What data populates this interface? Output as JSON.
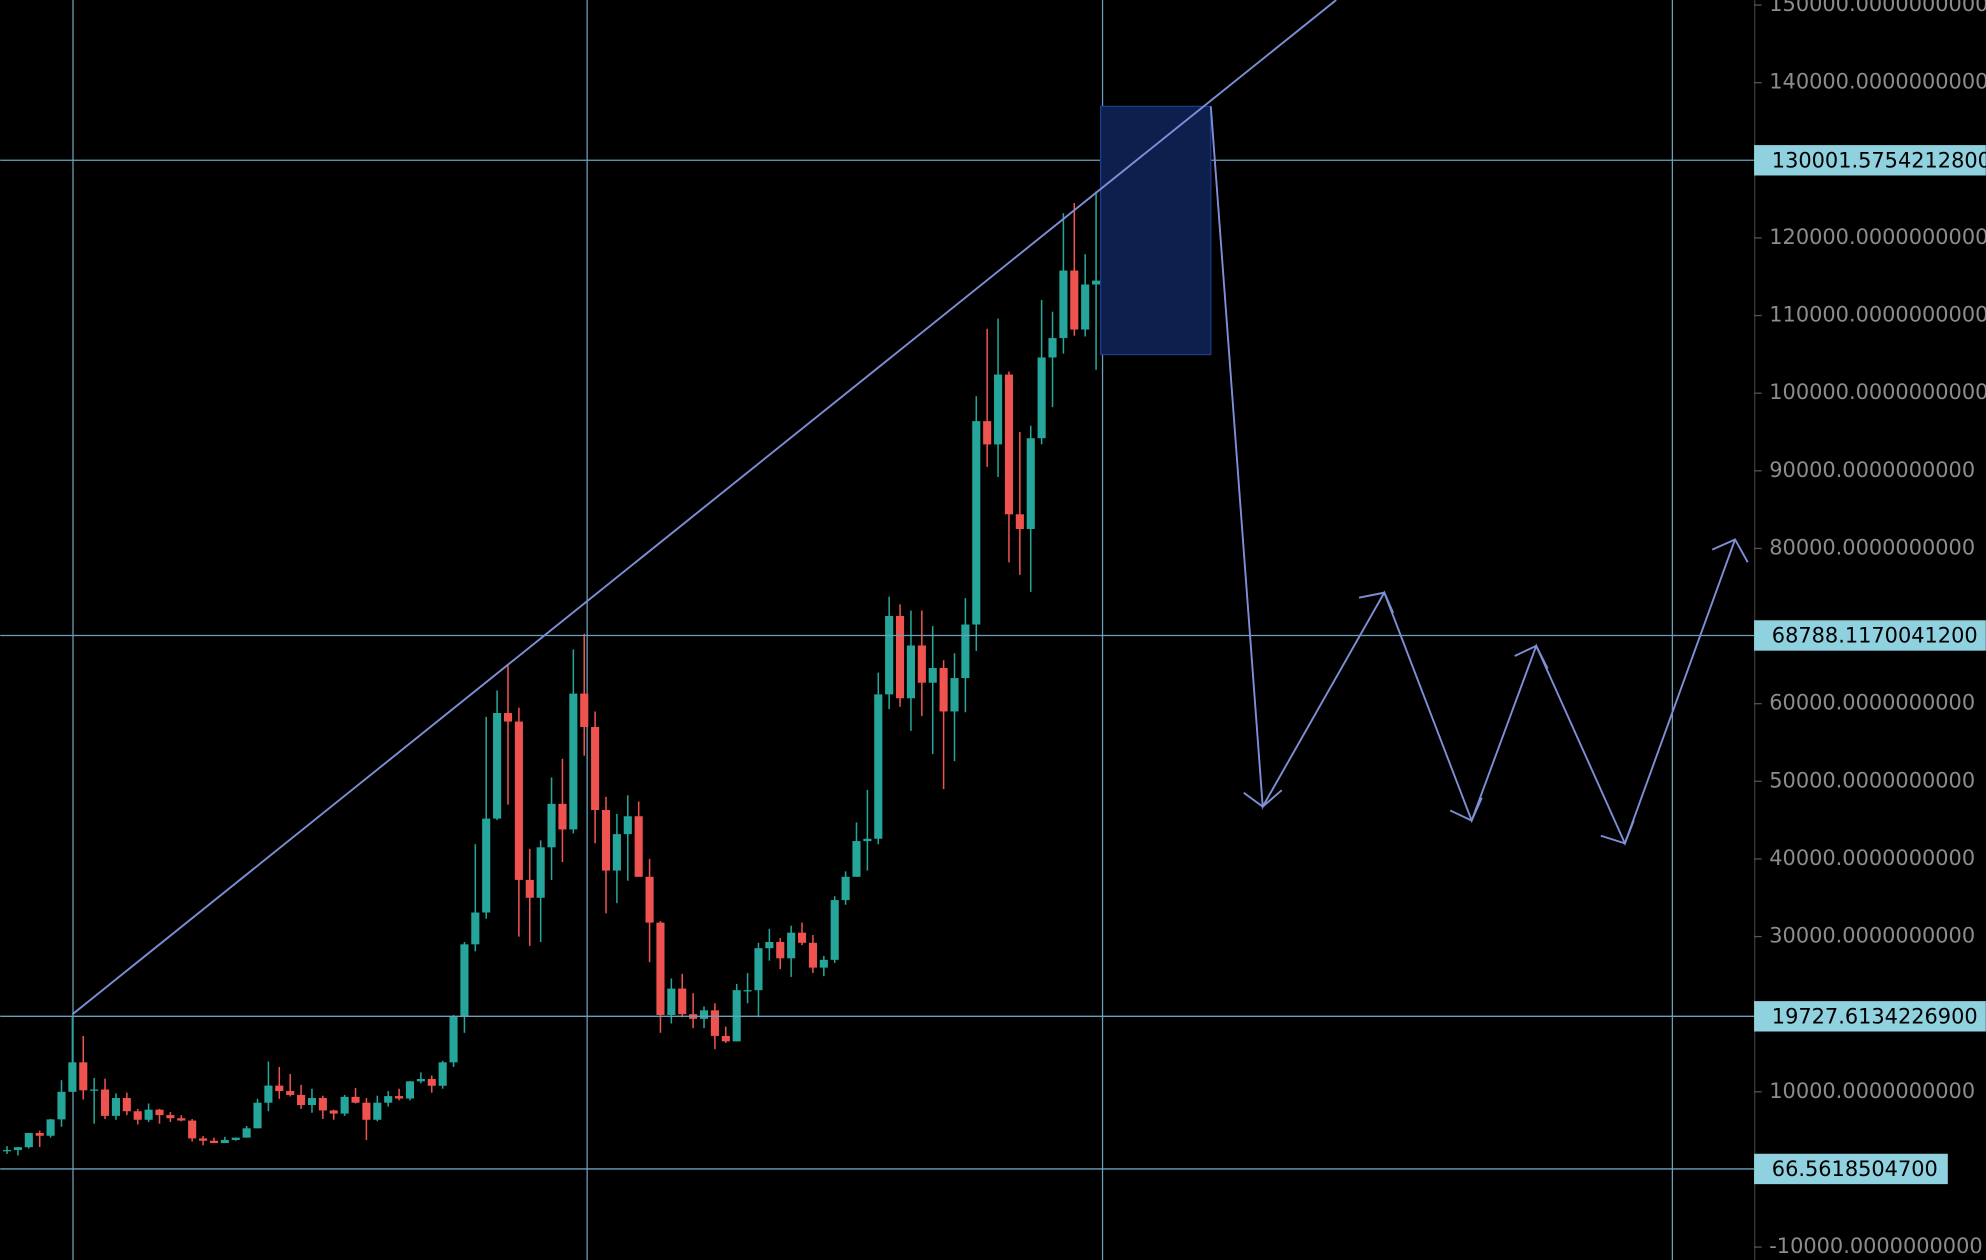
{
  "chart_data": {
    "type": "candlestick",
    "ylim": [
      -11664,
      150650
    ],
    "yticks": [
      {
        "value": 150000,
        "label": "150000.0000000000"
      },
      {
        "value": 140000,
        "label": "140000.0000000000"
      },
      {
        "value": 120000,
        "label": "120000.0000000000"
      },
      {
        "value": 110000,
        "label": "110000.0000000000"
      },
      {
        "value": 100000,
        "label": "100000.0000000000"
      },
      {
        "value": 90000,
        "label": "90000.0000000000"
      },
      {
        "value": 80000,
        "label": "80000.0000000000"
      },
      {
        "value": 60000,
        "label": "60000.0000000000"
      },
      {
        "value": 50000,
        "label": "50000.0000000000"
      },
      {
        "value": 40000,
        "label": "40000.0000000000"
      },
      {
        "value": 30000,
        "label": "30000.0000000000"
      },
      {
        "value": 10000,
        "label": "10000.0000000000"
      },
      {
        "value": -10000,
        "label": "-10000.0000000000"
      }
    ],
    "price_lines": [
      {
        "value": 130001.57542128,
        "label": "130001.5754212800"
      },
      {
        "value": 68788.11700412,
        "label": "68788.1170041200"
      },
      {
        "value": 19727.61342269,
        "label": "19727.6134226900"
      },
      {
        "value": 66.56185047,
        "label": "66.5618504700"
      }
    ],
    "up_color": "#26a69a",
    "down_color": "#ef5350",
    "open": [
      2400,
      2500,
      2870,
      4700,
      4340,
      6450,
      10000,
      13800,
      10200,
      10300,
      6900,
      9200,
      7500,
      6400,
      7700,
      7000,
      6600,
      6300,
      4000,
      3700,
      3400,
      3800,
      4100,
      5300,
      8600,
      10800,
      10100,
      9600,
      8300,
      9200,
      7600,
      7200,
      9350,
      8600,
      6400,
      8600,
      9450,
      9140,
      11350,
      11650,
      10780,
      13800,
      19700,
      29000,
      33100,
      45200,
      58800,
      57700,
      37300,
      35000,
      41500,
      47100,
      43800,
      61300,
      57000,
      46300,
      38500,
      43200,
      45500,
      37700,
      31800,
      19900,
      23300,
      20000,
      19400,
      20500,
      17200,
      16500,
      23100,
      23100,
      28500,
      29300,
      27200,
      30500,
      29200,
      26000,
      27000,
      34700,
      37700,
      42300,
      42600,
      61200,
      71300,
      60700,
      67500,
      62700,
      64600,
      59000,
      63300,
      70200,
      96400,
      93400,
      102400,
      84400,
      82500,
      94200,
      104600,
      107100,
      115800,
      108200,
      114000
    ],
    "high": [
      3000,
      2900,
      4700,
      5000,
      6500,
      11500,
      19700,
      17200,
      11800,
      11700,
      9800,
      9900,
      7800,
      8500,
      7800,
      7400,
      7000,
      6500,
      4300,
      4100,
      4200,
      4100,
      5600,
      9100,
      13900,
      13200,
      12300,
      10900,
      10400,
      9500,
      7700,
      9600,
      10500,
      9200,
      9500,
      10100,
      10400,
      11400,
      12500,
      12100,
      14000,
      19900,
      29300,
      41900,
      58300,
      61700,
      64900,
      59500,
      41300,
      42400,
      50500,
      52900,
      67000,
      69000,
      59000,
      48000,
      45800,
      48200,
      47400,
      40000,
      32000,
      24600,
      25200,
      22700,
      21000,
      21400,
      18400,
      23900,
      25300,
      29200,
      31000,
      29800,
      31400,
      31800,
      30200,
      27500,
      35200,
      38400,
      44700,
      48900,
      64000,
      73800,
      72800,
      72000,
      72000,
      70000,
      65600,
      66500,
      73600,
      99600,
      108300,
      109600,
      102800,
      95000,
      95800,
      112000,
      110500,
      123200,
      124500,
      117900,
      126000
    ],
    "low": [
      2000,
      1800,
      2700,
      2900,
      4100,
      5500,
      10000,
      9000,
      5900,
      6500,
      6400,
      7000,
      5800,
      6100,
      5900,
      6100,
      6200,
      3600,
      3100,
      3400,
      3400,
      3700,
      4100,
      5300,
      7500,
      9100,
      9400,
      7800,
      7300,
      6500,
      6400,
      6900,
      8500,
      3800,
      6200,
      8100,
      8900,
      8900,
      11100,
      9900,
      10400,
      13200,
      17600,
      28100,
      32300,
      45000,
      47000,
      30000,
      28800,
      29300,
      37300,
      39600,
      43300,
      53300,
      42000,
      33000,
      34300,
      37200,
      37700,
      26700,
      17600,
      18800,
      19600,
      18200,
      18200,
      15500,
      16300,
      16500,
      21400,
      19600,
      26900,
      25800,
      24800,
      28900,
      25300,
      24900,
      26600,
      34100,
      37700,
      38500,
      41900,
      59300,
      59600,
      56500,
      58400,
      53500,
      49000,
      52600,
      58900,
      66800,
      90500,
      89200,
      78200,
      76600,
      74400,
      93400,
      98200,
      105100,
      107400,
      107300,
      103000
    ],
    "close": [
      2500,
      2870,
      4700,
      4340,
      6450,
      10000,
      13800,
      10200,
      10300,
      6900,
      9200,
      7500,
      6400,
      7700,
      7000,
      6600,
      6300,
      4000,
      3700,
      3400,
      3800,
      4100,
      5300,
      8600,
      10800,
      10100,
      9600,
      8300,
      9200,
      7600,
      7200,
      9350,
      8600,
      6400,
      8600,
      9450,
      9140,
      11350,
      11650,
      10780,
      13800,
      19700,
      29000,
      33100,
      45200,
      58800,
      57700,
      37300,
      35000,
      41500,
      47100,
      43800,
      61300,
      57000,
      46300,
      38500,
      43200,
      45500,
      37700,
      31800,
      19900,
      23300,
      20000,
      19400,
      20500,
      17200,
      16500,
      23100,
      23100,
      28500,
      29300,
      27200,
      30500,
      29200,
      26000,
      27000,
      34700,
      37700,
      42300,
      42600,
      61200,
      71300,
      60700,
      67500,
      62700,
      64600,
      59000,
      63300,
      70200,
      96400,
      93400,
      102400,
      84400,
      82500,
      94200,
      104600,
      107100,
      115800,
      108200,
      114000,
      114500
    ]
  }
}
